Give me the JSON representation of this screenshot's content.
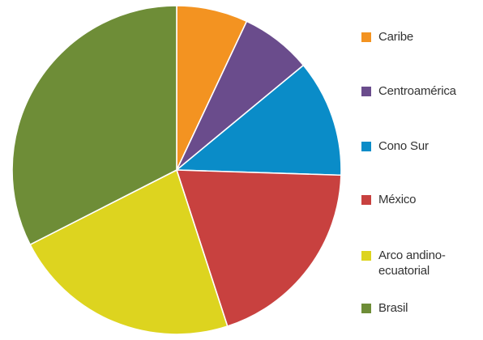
{
  "chart_data": {
    "type": "pie",
    "title": "",
    "start_angle_deg": 0,
    "direction": "clockwise",
    "slices": [
      {
        "label": "Caribe",
        "value": 7.0,
        "color": "#F39321"
      },
      {
        "label": "Centroamérica",
        "value": 7.0,
        "color": "#6A4C8C"
      },
      {
        "label": "Cono Sur",
        "value": 11.5,
        "color": "#0A8CC8"
      },
      {
        "label": "México",
        "value": 19.5,
        "color": "#C8413F"
      },
      {
        "label": "Arco andino-\necuatorial",
        "value": 22.5,
        "color": "#DDD41F"
      },
      {
        "label": "Brasil",
        "value": 32.5,
        "color": "#6E8D37"
      }
    ],
    "legend_order": [
      "Caribe",
      "Centroamérica",
      "Cono Sur",
      "México",
      "Arco andino-\necuatorial",
      "Brasil"
    ],
    "legend_position": "right"
  }
}
